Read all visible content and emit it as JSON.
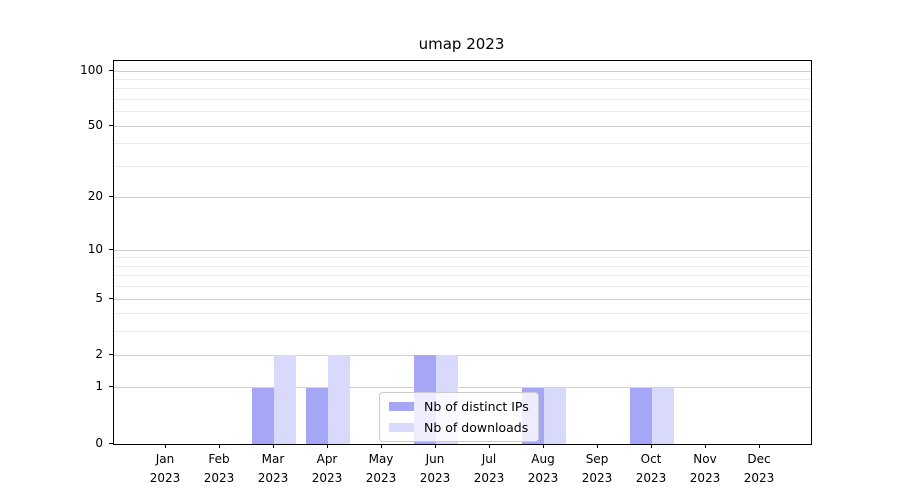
{
  "chart_data": {
    "type": "bar",
    "title": "umap 2023",
    "categories": [
      "Jan",
      "Feb",
      "Mar",
      "Apr",
      "May",
      "Jun",
      "Jul",
      "Aug",
      "Sep",
      "Oct",
      "Nov",
      "Dec"
    ],
    "x_tick_year": "2023",
    "series": [
      {
        "name": "Nb of distinct IPs",
        "color": "#a6a6f7",
        "values": [
          0,
          0,
          1,
          1,
          0,
          2,
          0,
          1,
          0,
          1,
          0,
          0
        ]
      },
      {
        "name": "Nb of downloads",
        "color": "#d9d9fb",
        "values": [
          0,
          0,
          2,
          2,
          0,
          2,
          0,
          1,
          0,
          1,
          0,
          0
        ]
      }
    ],
    "y_ticks": [
      0,
      1,
      2,
      5,
      10,
      20,
      50,
      100
    ],
    "y_minor_gridlines": [
      3,
      4,
      6,
      7,
      8,
      9,
      30,
      40,
      60,
      70,
      80,
      90
    ],
    "y_scale": "log1p",
    "ylim": [
      0,
      113
    ],
    "grid": "horizontal",
    "legend_location": "lower center, inside plot",
    "colors": {
      "major_grid": "#d0d0d0",
      "minor_grid": "#ececec",
      "axis": "#000000",
      "text": "#000000",
      "background": "#ffffff"
    }
  }
}
